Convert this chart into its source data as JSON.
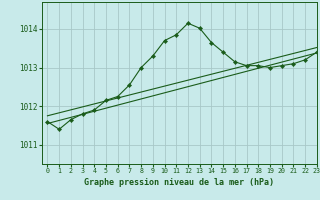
{
  "title": "Graphe pression niveau de la mer (hPa)",
  "bg_color": "#c8eaea",
  "grid_color": "#a8c8c8",
  "line_color": "#1a5c1a",
  "xlim": [
    -0.5,
    23
  ],
  "ylim": [
    1010.5,
    1014.7
  ],
  "yticks": [
    1011,
    1012,
    1013,
    1014
  ],
  "xticks": [
    0,
    1,
    2,
    3,
    4,
    5,
    6,
    7,
    8,
    9,
    10,
    11,
    12,
    13,
    14,
    15,
    16,
    17,
    18,
    19,
    20,
    21,
    22,
    23
  ],
  "main_line": [
    [
      0,
      1011.6
    ],
    [
      1,
      1011.4
    ],
    [
      2,
      1011.65
    ],
    [
      3,
      1011.8
    ],
    [
      4,
      1011.9
    ],
    [
      5,
      1012.15
    ],
    [
      6,
      1012.25
    ],
    [
      7,
      1012.55
    ],
    [
      8,
      1013.0
    ],
    [
      9,
      1013.3
    ],
    [
      10,
      1013.7
    ],
    [
      11,
      1013.85
    ],
    [
      12,
      1014.15
    ],
    [
      13,
      1014.02
    ],
    [
      14,
      1013.65
    ],
    [
      15,
      1013.4
    ],
    [
      16,
      1013.15
    ],
    [
      17,
      1013.05
    ],
    [
      18,
      1013.05
    ],
    [
      19,
      1013.0
    ],
    [
      20,
      1013.05
    ],
    [
      21,
      1013.1
    ],
    [
      22,
      1013.2
    ],
    [
      23,
      1013.4
    ]
  ],
  "trend_line1": [
    [
      0,
      1011.55
    ],
    [
      23,
      1013.38
    ]
  ],
  "trend_line2": [
    [
      0,
      1011.75
    ],
    [
      23,
      1013.52
    ]
  ]
}
